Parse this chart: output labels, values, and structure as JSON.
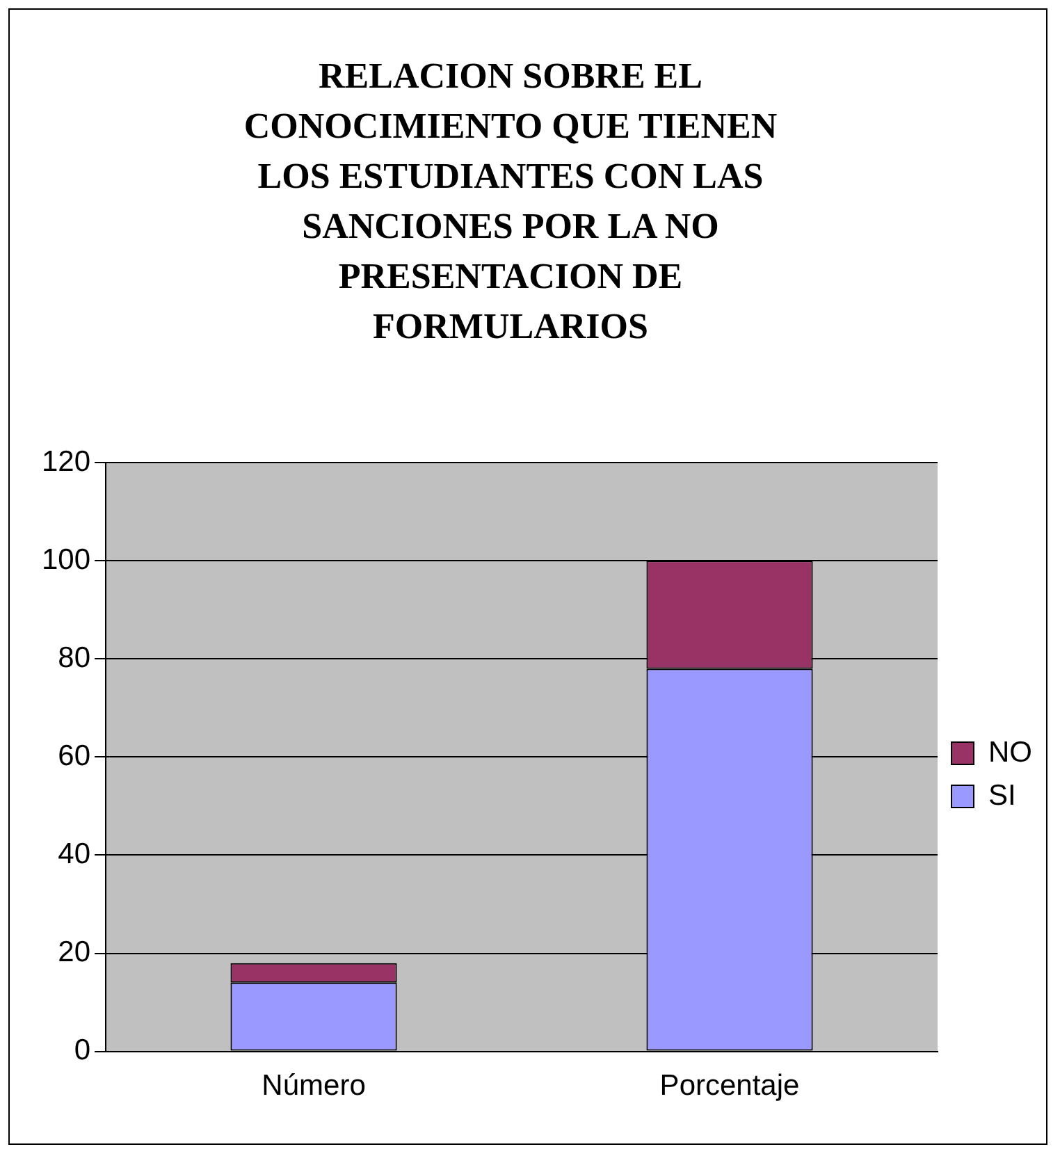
{
  "chart_data": {
    "type": "bar",
    "title": "RELACION SOBRE EL CONOCIMIENTO QUE TIENEN LOS ESTUDIANTES CON LAS SANCIONES POR LA NO PRESENTACION DE FORMULARIOS",
    "categories": [
      "Número",
      "Porcentaje"
    ],
    "series": [
      {
        "name": "SI",
        "color": "#9999ff",
        "values": [
          14,
          78
        ]
      },
      {
        "name": "NO",
        "color": "#993366",
        "values": [
          4,
          22
        ]
      }
    ],
    "stacked": true,
    "ylim": [
      0,
      120
    ],
    "yticks": [
      0,
      20,
      40,
      60,
      80,
      100,
      120
    ],
    "grid": "y",
    "legend": "right"
  }
}
